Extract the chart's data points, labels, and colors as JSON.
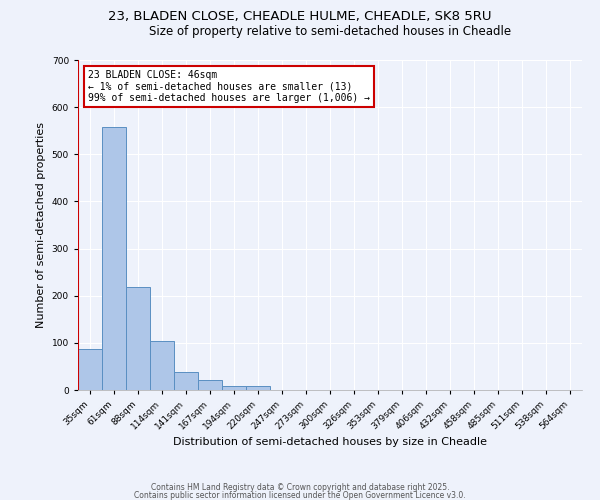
{
  "title1": "23, BLADEN CLOSE, CHEADLE HULME, CHEADLE, SK8 5RU",
  "title2": "Size of property relative to semi-detached houses in Cheadle",
  "xlabel": "Distribution of semi-detached houses by size in Cheadle",
  "ylabel": "Number of semi-detached properties",
  "bin_labels": [
    "35sqm",
    "61sqm",
    "88sqm",
    "114sqm",
    "141sqm",
    "167sqm",
    "194sqm",
    "220sqm",
    "247sqm",
    "273sqm",
    "300sqm",
    "326sqm",
    "353sqm",
    "379sqm",
    "406sqm",
    "432sqm",
    "458sqm",
    "485sqm",
    "511sqm",
    "538sqm",
    "564sqm"
  ],
  "bar_heights": [
    88,
    557,
    218,
    105,
    38,
    22,
    8,
    8,
    0,
    0,
    0,
    0,
    0,
    0,
    0,
    0,
    0,
    0,
    0,
    0,
    0
  ],
  "bar_color": "#aec6e8",
  "bar_edge_color": "#5a8fc2",
  "highlight_line_color": "#cc0000",
  "annotation_text": "23 BLADEN CLOSE: 46sqm\n← 1% of semi-detached houses are smaller (13)\n99% of semi-detached houses are larger (1,006) →",
  "annotation_box_color": "#ffffff",
  "annotation_box_edge": "#cc0000",
  "ylim": [
    0,
    700
  ],
  "yticks": [
    0,
    100,
    200,
    300,
    400,
    500,
    600,
    700
  ],
  "footer1": "Contains HM Land Registry data © Crown copyright and database right 2025.",
  "footer2": "Contains public sector information licensed under the Open Government Licence v3.0.",
  "bg_color": "#eef2fb",
  "grid_color": "#ffffff",
  "title1_fontsize": 9.5,
  "title2_fontsize": 8.5,
  "tick_fontsize": 6.5,
  "ylabel_fontsize": 8,
  "xlabel_fontsize": 8,
  "footer_fontsize": 5.5,
  "annot_fontsize": 7
}
